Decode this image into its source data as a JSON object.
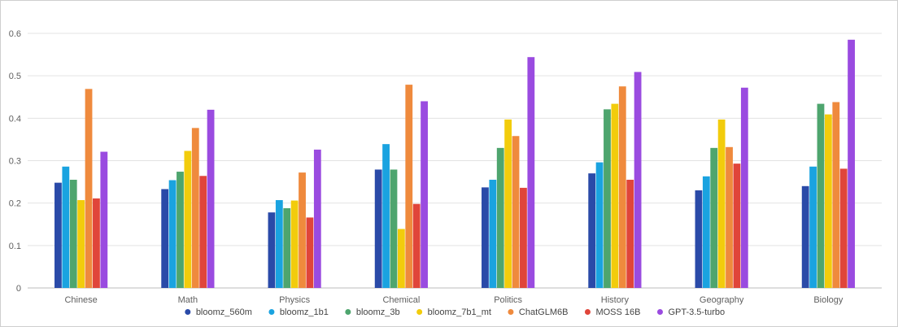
{
  "chart_data": {
    "type": "bar",
    "title": "",
    "xlabel": "",
    "ylabel": "",
    "ylim": [
      0,
      0.6
    ],
    "yticks": [
      "0",
      "0.1",
      "0.2",
      "0.3",
      "0.4",
      "0.5",
      "0.6"
    ],
    "grid": true,
    "legend_position": "bottom",
    "categories": [
      "Chinese",
      "Math",
      "Physics",
      "Chemical",
      "Politics",
      "History",
      "Geography",
      "Biology"
    ],
    "series": [
      {
        "name": "bloomz_560m",
        "color": "#2a4aa8",
        "values": [
          0.248,
          0.233,
          0.178,
          0.279,
          0.237,
          0.27,
          0.23,
          0.24
        ]
      },
      {
        "name": "bloomz_1b1",
        "color": "#1aa3e0",
        "values": [
          0.286,
          0.254,
          0.207,
          0.339,
          0.255,
          0.296,
          0.263,
          0.286
        ]
      },
      {
        "name": "bloomz_3b",
        "color": "#4ea56e",
        "values": [
          0.255,
          0.274,
          0.188,
          0.279,
          0.33,
          0.421,
          0.33,
          0.434
        ]
      },
      {
        "name": "bloomz_7b1_mt",
        "color": "#f2cc0c",
        "values": [
          0.207,
          0.323,
          0.206,
          0.139,
          0.397,
          0.434,
          0.397,
          0.409
        ]
      },
      {
        "name": "ChatGLM6B",
        "color": "#ef8a3d",
        "values": [
          0.469,
          0.377,
          0.272,
          0.479,
          0.358,
          0.475,
          0.332,
          0.438
        ]
      },
      {
        "name": "MOSS 16B",
        "color": "#e0453a",
        "values": [
          0.211,
          0.264,
          0.166,
          0.198,
          0.236,
          0.255,
          0.293,
          0.281
        ]
      },
      {
        "name": "GPT-3.5-turbo",
        "color": "#9a4be0",
        "values": [
          0.321,
          0.42,
          0.326,
          0.44,
          0.544,
          0.509,
          0.472,
          0.585
        ]
      }
    ]
  }
}
